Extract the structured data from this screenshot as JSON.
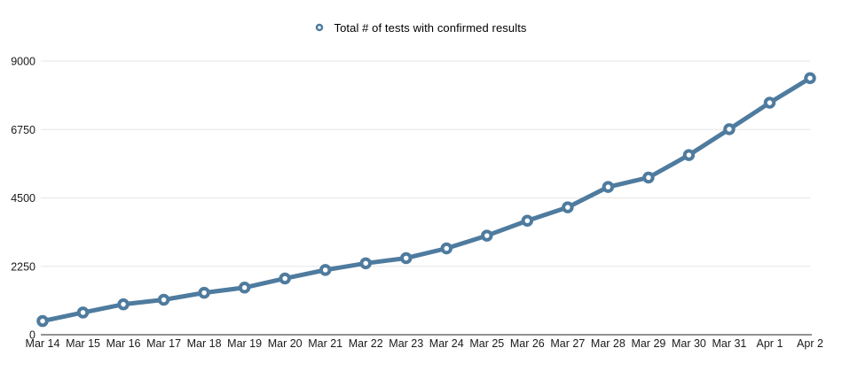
{
  "legend": {
    "label": "Total # of tests with confirmed results",
    "marker": "open-circle"
  },
  "colors": {
    "background": "#ffffff",
    "series": "#4e7b9e",
    "marker_fill": "#ffffff",
    "gridline": "#e6e6e6",
    "axis_line": "#262626",
    "label_text": "#1a1a1a",
    "legend_text": "#000000"
  },
  "chart_data": {
    "type": "line",
    "title": "",
    "xlabel": "",
    "ylabel": "",
    "legend_position": "top-center",
    "grid": "horizontal-only",
    "marker": "open-circle",
    "ylim": [
      0,
      9000
    ],
    "yticks": [
      0,
      2250,
      4500,
      6750,
      9000
    ],
    "x": [
      "Mar 14",
      "Mar 15",
      "Mar 16",
      "Mar 17",
      "Mar 18",
      "Mar 19",
      "Mar 20",
      "Mar 21",
      "Mar 22",
      "Mar 23",
      "Mar 24",
      "Mar 25",
      "Mar 26",
      "Mar 27",
      "Mar 28",
      "Mar 29",
      "Mar 30",
      "Mar 31",
      "Apr 1",
      "Apr 2"
    ],
    "series": [
      {
        "name": "Total # of tests with confirmed results",
        "values": [
          450,
          730,
          1000,
          1150,
          1380,
          1550,
          1850,
          2130,
          2350,
          2520,
          2840,
          3260,
          3750,
          4190,
          4860,
          5170,
          5910,
          6760,
          7630,
          8440
        ]
      }
    ]
  }
}
